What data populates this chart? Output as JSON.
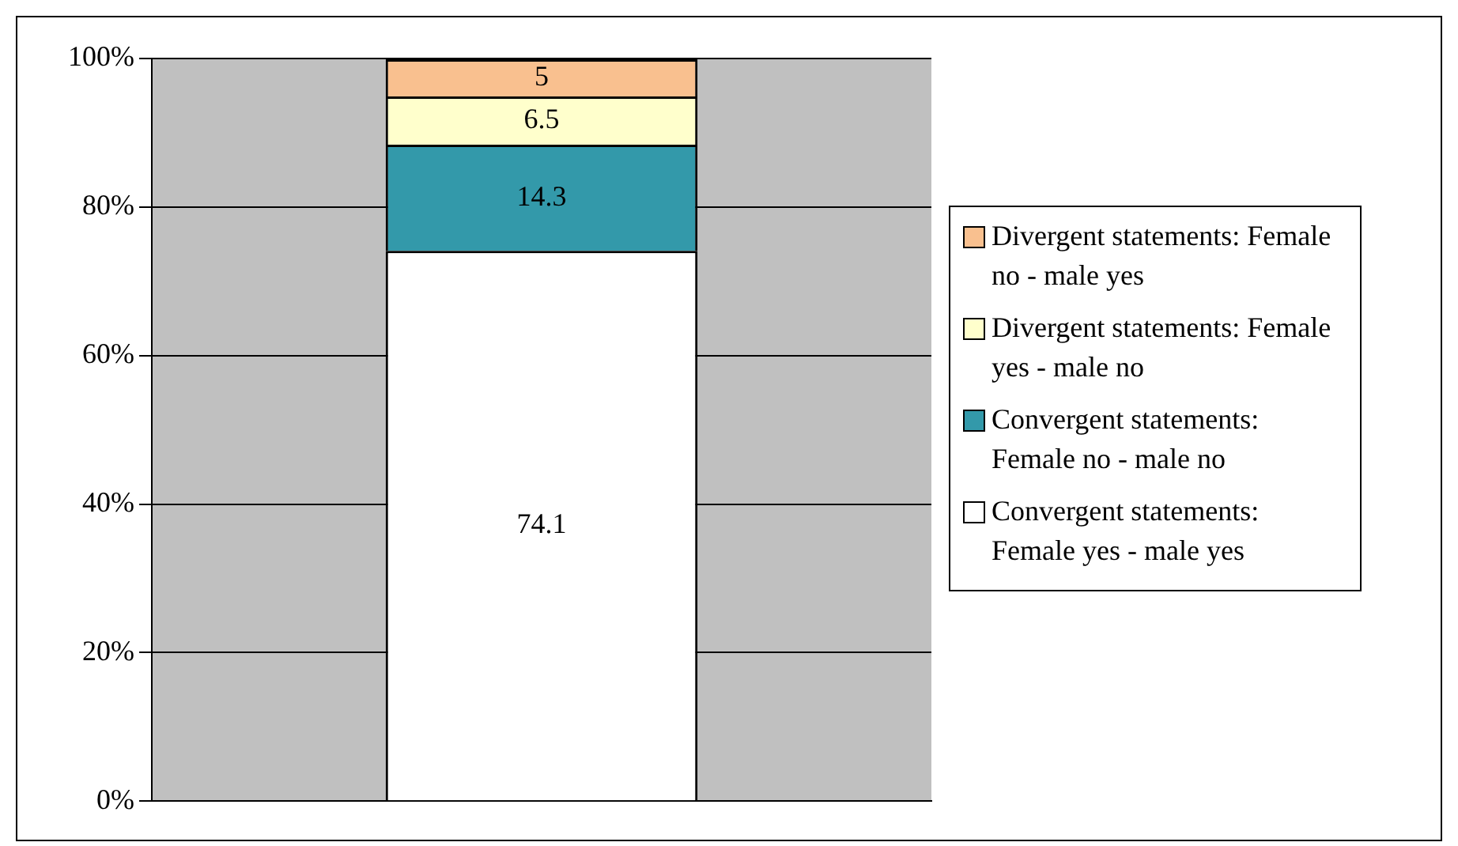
{
  "chart_data": {
    "type": "bar",
    "stacked": true,
    "categories": [
      null
    ],
    "series": [
      {
        "name": "Convergent statements: Female yes - male yes",
        "color": "#ffffff",
        "values": [
          74.1
        ]
      },
      {
        "name": "Convergent statements: Female no - male no",
        "color": "#3399aa",
        "values": [
          14.3
        ]
      },
      {
        "name": "Divergent statements: Female yes - male no",
        "color": "#ffffcc",
        "values": [
          6.5
        ]
      },
      {
        "name": "Divergent statements: Female no - male yes",
        "color": "#f9c08f",
        "values": [
          5
        ]
      }
    ],
    "ylim": [
      0,
      100
    ],
    "yticks": [
      {
        "value": 0,
        "label": "0%"
      },
      {
        "value": 20,
        "label": "20%"
      },
      {
        "value": 40,
        "label": "40%"
      },
      {
        "value": 60,
        "label": "60%"
      },
      {
        "value": 80,
        "label": "80%"
      },
      {
        "value": 100,
        "label": "100%"
      }
    ],
    "grid": "y",
    "legend": "right",
    "data_labels": true
  }
}
